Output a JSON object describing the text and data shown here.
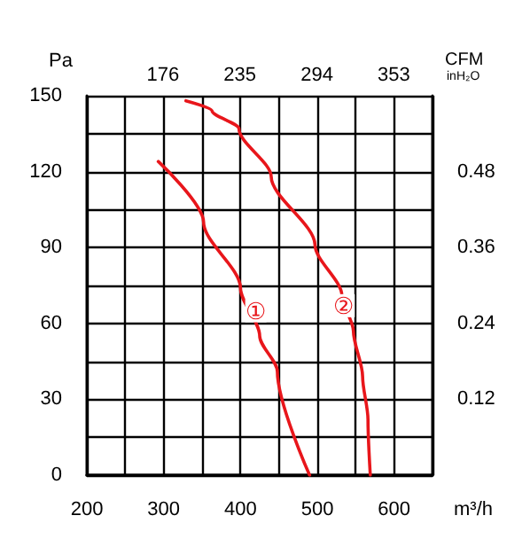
{
  "chart_data": {
    "type": "line",
    "xlabel": "m³/h",
    "ylabel": "Pa",
    "x2label": "CFM",
    "y2label": "inH₂O",
    "xlim": [
      200,
      650
    ],
    "xticks": [
      200,
      {
        "value": 250,
        "label": null
      },
      300,
      {
        "value": 350,
        "label": null
      },
      400,
      {
        "value": 450,
        "label": null
      },
      500,
      {
        "value": 550,
        "label": null
      },
      600,
      {
        "value": 650,
        "label": null
      }
    ],
    "ylim": [
      0,
      150
    ],
    "yticks": [
      0,
      {
        "value": 15,
        "label": null
      },
      30,
      {
        "value": 45,
        "label": null
      },
      60,
      {
        "value": 75,
        "label": null
      },
      90,
      {
        "value": 105,
        "label": null
      },
      120,
      {
        "value": 135,
        "label": null
      },
      150
    ],
    "x2lim": [
      117.7,
      382.6
    ],
    "x2ticks": [
      176,
      235,
      294,
      353
    ],
    "y2lim": [
      0,
      0.6
    ],
    "y2ticks": [
      0.12,
      0.24,
      0.36,
      0.48
    ],
    "grid": true,
    "marker": "none",
    "line_style": "solid",
    "series": [
      {
        "color": "#e8161b",
        "x": [
          293,
          352,
          400,
          425,
          448,
          490
        ],
        "values": [
          124,
          100,
          74,
          55,
          41,
          0
        ]
      },
      {
        "color": "#e8161b",
        "x": [
          329,
          363,
          398,
          440,
          497,
          532,
          547,
          559,
          566,
          569
        ],
        "values": [
          148,
          144,
          137,
          118,
          91,
          71,
          57,
          39,
          22,
          0
        ]
      }
    ],
    "annotations": [
      {
        "text": "①",
        "x": 420,
        "y": 65
      },
      {
        "text": "②",
        "x": 535,
        "y": 67
      }
    ]
  }
}
